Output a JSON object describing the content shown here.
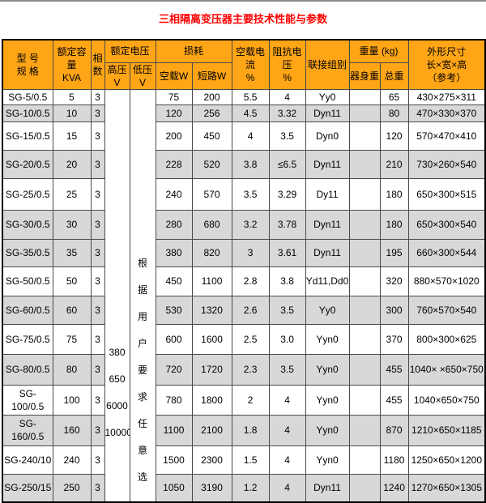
{
  "page": {
    "title": "三相隔离变压器主要技术性能与参数"
  },
  "colors": {
    "header_bg": "#FFA516",
    "shaded_row": "#D8D8D8",
    "title_color": "#FF0000",
    "top_bar": "#8B8B83",
    "border_color": "#4A4A4A",
    "outer_border": "#000000"
  },
  "table": {
    "headers": {
      "model": "型 号\n规 格",
      "capacity": "额定容量\nKVA",
      "phases": "相\n数",
      "rated_voltage": "额定电压",
      "hv": "高压V",
      "lv": "低压V",
      "loss": "损耗",
      "no_load_w": "空载W",
      "short_w": "短路W",
      "no_load_current": "空载电流\n%",
      "impedance": "阻抗电压\n%",
      "connection": "联接组别",
      "weight": "重量 (kg)",
      "body_weight": "器身重",
      "total_weight": "总重",
      "dimensions": "外形尺寸\n长×宽×高\n（参考）"
    },
    "hv_options": [
      "380",
      "650",
      "6000",
      "10000"
    ],
    "lv_note": "根据用户要求任意选",
    "rows": [
      {
        "model": "SG-5/0.5",
        "kva": "5",
        "ph": "3",
        "nlw": "75",
        "sw": "200",
        "nlc": "5.5",
        "imp": "4",
        "conn": "Yy0",
        "bw": "",
        "tw": "65",
        "dims": "430×275×311",
        "shaded": false
      },
      {
        "model": "SG-10/0.5",
        "kva": "10",
        "ph": "3",
        "nlw": "120",
        "sw": "256",
        "nlc": "4.5",
        "imp": "3.32",
        "conn": "Dyn11",
        "bw": "",
        "tw": "80",
        "dims": "470×330×370",
        "shaded": true
      },
      {
        "model": "SG-15/0.5",
        "kva": "15",
        "ph": "3",
        "nlw": "200",
        "sw": "450",
        "nlc": "4",
        "imp": "3.5",
        "conn": "Dyn0",
        "bw": "",
        "tw": "120",
        "dims": "570×470×410",
        "shaded": false
      },
      {
        "model": "SG-20/0.5",
        "kva": "20",
        "ph": "3",
        "nlw": "228",
        "sw": "520",
        "nlc": "3.8",
        "imp": "≤6.5",
        "conn": "Dyn11",
        "bw": "",
        "tw": "210",
        "dims": "730×260×540",
        "shaded": true
      },
      {
        "model": "SG-25/0.5",
        "kva": "25",
        "ph": "3",
        "nlw": "240",
        "sw": "570",
        "nlc": "3.5",
        "imp": "3.29",
        "conn": "Dy11",
        "bw": "",
        "tw": "180",
        "dims": "650×300×515",
        "shaded": false
      },
      {
        "model": "SG-30/0.5",
        "kva": "30",
        "ph": "3",
        "nlw": "280",
        "sw": "680",
        "nlc": "3.2",
        "imp": "3.78",
        "conn": "Dyn11",
        "bw": "",
        "tw": "180",
        "dims": "650×300×540",
        "shaded": true
      },
      {
        "model": "SG-35/0.5",
        "kva": "35",
        "ph": "3",
        "nlw": "380",
        "sw": "820",
        "nlc": "3",
        "imp": "3.61",
        "conn": "Dyn11",
        "bw": "",
        "tw": "195",
        "dims": "660×300×544",
        "shaded": true
      },
      {
        "model": "SG-50/0.5",
        "kva": "50",
        "ph": "3",
        "nlw": "450",
        "sw": "1100",
        "nlc": "2.8",
        "imp": "3.8",
        "conn": "Yd11,Dd0",
        "bw": "",
        "tw": "320",
        "dims": "880×570×1020",
        "shaded": false
      },
      {
        "model": "SG-60/0.5",
        "kva": "60",
        "ph": "3",
        "nlw": "530",
        "sw": "1320",
        "nlc": "2.6",
        "imp": "3.5",
        "conn": "Yy0",
        "bw": "",
        "tw": "300",
        "dims": "760×570×540",
        "shaded": true
      },
      {
        "model": "SG-75/0.5",
        "kva": "75",
        "ph": "3",
        "nlw": "600",
        "sw": "1600",
        "nlc": "2.5",
        "imp": "3.0",
        "conn": "Yyn0",
        "bw": "",
        "tw": "370",
        "dims": "800×300×625",
        "shaded": false
      },
      {
        "model": "SG-80/0.5",
        "kva": "80",
        "ph": "3",
        "nlw": "720",
        "sw": "1720",
        "nlc": "2.3",
        "imp": "3.5",
        "conn": "Yyn0",
        "bw": "",
        "tw": "455",
        "dims": "1040× ×650×750",
        "shaded": true
      },
      {
        "model": "SG-100/0.5",
        "kva": "100",
        "ph": "3",
        "nlw": "780",
        "sw": "1800",
        "nlc": "2",
        "imp": "4",
        "conn": "Yyn0",
        "bw": "",
        "tw": "455",
        "dims": "1040×650×750",
        "shaded": false
      },
      {
        "model": "SG-160/0.5",
        "kva": "160",
        "ph": "3",
        "nlw": "1100",
        "sw": "2100",
        "nlc": "1.8",
        "imp": "4",
        "conn": "Yyn0",
        "bw": "",
        "tw": "870",
        "dims": "1210×650×1185",
        "shaded": true
      },
      {
        "model": "SG-240/10",
        "kva": "240",
        "ph": "3",
        "nlw": "1500",
        "sw": "2300",
        "nlc": "1.5",
        "imp": "4",
        "conn": "Yyn0",
        "bw": "",
        "tw": "1180",
        "dims": "1250×650×1200",
        "shaded": false
      },
      {
        "model": "SG-250/15",
        "kva": "250",
        "ph": "3",
        "nlw": "1050",
        "sw": "3190",
        "nlc": "1.2",
        "imp": "4",
        "conn": "Dyn11",
        "bw": "",
        "tw": "1240",
        "dims": "1270×650×1305",
        "shaded": true
      }
    ]
  }
}
